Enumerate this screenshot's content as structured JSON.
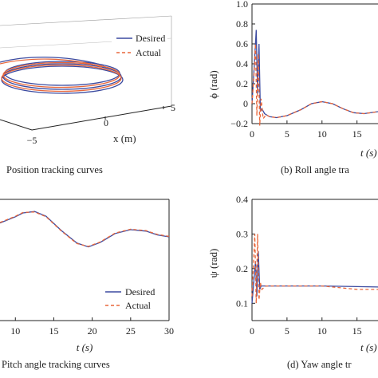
{
  "colors": {
    "desired": "#3b4aa0",
    "actual": "#e8663a",
    "axis": "#222222"
  },
  "legend": {
    "desired": "Desired",
    "actual": "Actual"
  },
  "chart_data": [
    {
      "id": "a",
      "type": "line",
      "caption": "Position tracking curves",
      "xlabel": "x (m)",
      "x_ticks": [
        "−5",
        "0",
        "5"
      ],
      "series": [
        {
          "name": "Desired",
          "values": []
        },
        {
          "name": "Actual",
          "values": []
        }
      ]
    },
    {
      "id": "b",
      "type": "line",
      "caption": "(b) Roll angle tra",
      "xlabel": "t (s)",
      "ylabel": "ϕ (rad)",
      "xlim": [
        0,
        18
      ],
      "ylim": [
        -0.2,
        1.0
      ],
      "y_ticks": [
        "1.0",
        "0.8",
        "0.6",
        "0.4",
        "0.2",
        "0",
        "−0.2"
      ],
      "x_ticks": [
        "0",
        "5",
        "10",
        "15"
      ],
      "series": [
        {
          "name": "Desired",
          "x": [
            0,
            0.3,
            0.6,
            0.8,
            1.0,
            1.2,
            1.4,
            1.8,
            2.5,
            3.5,
            5,
            7,
            8.5,
            10,
            11.5,
            13,
            14.5,
            16,
            18
          ],
          "y": [
            0,
            0.35,
            0.74,
            0.1,
            0.6,
            -0.08,
            -0.05,
            -0.1,
            -0.13,
            -0.14,
            -0.12,
            -0.06,
            0,
            0.02,
            0,
            -0.05,
            -0.09,
            -0.1,
            -0.08
          ]
        },
        {
          "name": "Actual",
          "x": [
            0,
            0.3,
            0.5,
            0.7,
            0.9,
            1.1,
            1.3,
            1.6,
            2.0,
            2.5,
            3.5,
            5,
            7,
            8.5,
            10,
            11.5,
            13,
            14.5,
            16,
            18
          ],
          "y": [
            0,
            0.3,
            0.6,
            -0.12,
            0.5,
            -0.22,
            0.05,
            -0.15,
            -0.11,
            -0.13,
            -0.14,
            -0.12,
            -0.06,
            0,
            0.02,
            0,
            -0.05,
            -0.09,
            -0.1,
            -0.08
          ]
        }
      ]
    },
    {
      "id": "c",
      "type": "line",
      "caption": "Pitch angle tracking curves",
      "xlabel": "t (s)",
      "xlim": [
        8,
        30
      ],
      "x_ticks": [
        "10",
        "15",
        "20",
        "25",
        "30"
      ],
      "series": [
        {
          "name": "Desired",
          "x": [
            8,
            10,
            11,
            12.5,
            14,
            16,
            18,
            19.5,
            21,
            23,
            25,
            27,
            28.5,
            30
          ],
          "y": [
            0.34,
            0.47,
            0.55,
            0.58,
            0.48,
            0.18,
            -0.08,
            -0.16,
            -0.07,
            0.12,
            0.2,
            0.17,
            0.09,
            0.05
          ]
        },
        {
          "name": "Actual",
          "x": [
            8,
            10,
            11,
            12.5,
            14,
            16,
            18,
            19.5,
            21,
            23,
            25,
            27,
            28.5,
            30
          ],
          "y": [
            0.35,
            0.48,
            0.56,
            0.57,
            0.47,
            0.17,
            -0.09,
            -0.15,
            -0.06,
            0.13,
            0.21,
            0.18,
            0.1,
            0.06
          ]
        }
      ]
    },
    {
      "id": "d",
      "type": "line",
      "caption": "(d) Yaw angle tr",
      "xlabel": "t (s)",
      "ylabel": "ψ (rad)",
      "xlim": [
        0,
        18
      ],
      "ylim": [
        0.05,
        0.4
      ],
      "y_ticks": [
        "0.4",
        "0.3",
        "0.2",
        "0.1"
      ],
      "x_ticks": [
        "0",
        "5",
        "10",
        "15"
      ],
      "series": [
        {
          "name": "Desired",
          "x": [
            0,
            0.5,
            0.7,
            0.9,
            1.1,
            1.3,
            2,
            5,
            10,
            15,
            18
          ],
          "y": [
            0.1,
            0.22,
            0.12,
            0.25,
            0.14,
            0.15,
            0.15,
            0.15,
            0.15,
            0.148,
            0.147
          ]
        },
        {
          "name": "Actual",
          "x": [
            0,
            0.4,
            0.6,
            0.8,
            1.0,
            1.2,
            1.4,
            2,
            5,
            10,
            15,
            18
          ],
          "y": [
            0.12,
            0.3,
            0.1,
            0.3,
            0.11,
            0.16,
            0.14,
            0.15,
            0.15,
            0.15,
            0.14,
            0.14
          ]
        }
      ]
    }
  ]
}
